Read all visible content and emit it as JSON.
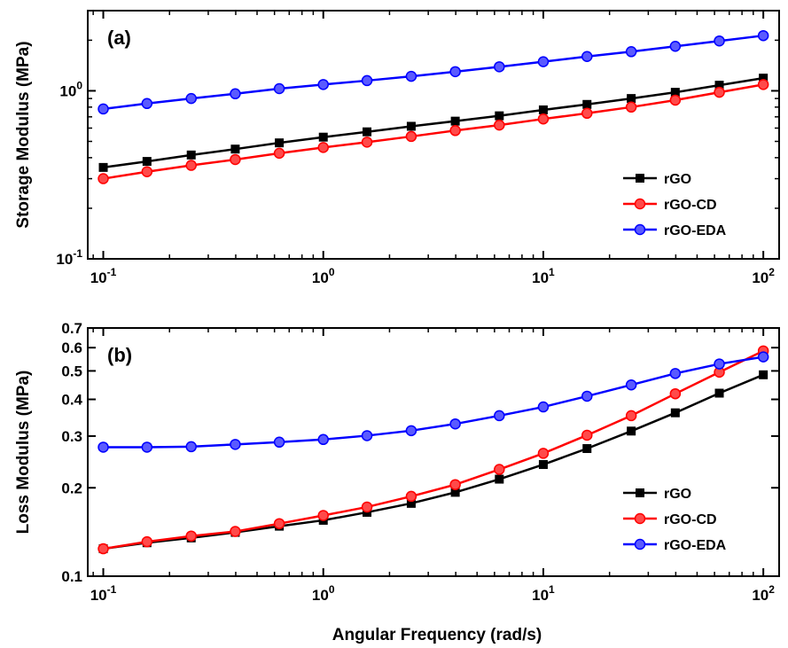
{
  "chart_data": [
    {
      "type": "line",
      "panel_label": "(a)",
      "xlabel": "",
      "ylabel": "Storage Modulus (MPa)",
      "xscale": "log",
      "yscale": "log",
      "xlim": [
        0.085,
        118
      ],
      "ylim": [
        0.1,
        3.0
      ],
      "x_ticks": [
        {
          "value": 0.1,
          "base": "10",
          "exp": "-1"
        },
        {
          "value": 1,
          "base": "10",
          "exp": "0"
        },
        {
          "value": 10,
          "base": "10",
          "exp": "1"
        },
        {
          "value": 100,
          "base": "10",
          "exp": "2"
        }
      ],
      "y_ticks": [
        {
          "value": 0.1,
          "base": "10",
          "exp": "-1"
        },
        {
          "value": 1,
          "base": "10",
          "exp": "0"
        }
      ],
      "grid": false,
      "legend_position": "bottom-right",
      "x": [
        0.1,
        0.158,
        0.251,
        0.398,
        0.631,
        1,
        1.58,
        2.51,
        3.98,
        6.31,
        10,
        15.8,
        25.1,
        39.8,
        63.1,
        100
      ],
      "series": [
        {
          "name": "rGO",
          "color": "#000000",
          "marker": "square",
          "values": [
            0.35,
            0.38,
            0.415,
            0.45,
            0.49,
            0.53,
            0.57,
            0.615,
            0.66,
            0.71,
            0.77,
            0.83,
            0.9,
            0.98,
            1.08,
            1.19
          ]
        },
        {
          "name": "rGO-CD",
          "color": "#ff0000",
          "marker": "circle",
          "values": [
            0.3,
            0.33,
            0.36,
            0.39,
            0.425,
            0.46,
            0.495,
            0.535,
            0.58,
            0.625,
            0.68,
            0.735,
            0.8,
            0.88,
            0.98,
            1.09
          ]
        },
        {
          "name": "rGO-EDA",
          "color": "#0000ff",
          "marker": "circle",
          "values": [
            0.78,
            0.84,
            0.9,
            0.96,
            1.03,
            1.09,
            1.15,
            1.22,
            1.3,
            1.39,
            1.49,
            1.6,
            1.71,
            1.84,
            1.98,
            2.13
          ]
        }
      ]
    },
    {
      "type": "line",
      "panel_label": "(b)",
      "xlabel": "Angular Frequency (rad/s)",
      "ylabel": "Loss Modulus (MPa)",
      "xscale": "log",
      "yscale": "log",
      "xlim": [
        0.085,
        118
      ],
      "ylim": [
        0.1,
        0.7
      ],
      "x_ticks": [
        {
          "value": 0.1,
          "base": "10",
          "exp": "-1"
        },
        {
          "value": 1,
          "base": "10",
          "exp": "0"
        },
        {
          "value": 10,
          "base": "10",
          "exp": "1"
        },
        {
          "value": 100,
          "base": "10",
          "exp": "2"
        }
      ],
      "y_ticks": [
        {
          "value": 0.1,
          "label": "0.1"
        },
        {
          "value": 0.2,
          "label": "0.2"
        },
        {
          "value": 0.3,
          "label": "0.3"
        },
        {
          "value": 0.4,
          "label": "0.4"
        },
        {
          "value": 0.5,
          "label": "0.5"
        },
        {
          "value": 0.6,
          "label": "0.6"
        },
        {
          "value": 0.7,
          "label": "0.7"
        }
      ],
      "grid": false,
      "legend_position": "bottom-right",
      "x": [
        0.1,
        0.158,
        0.251,
        0.398,
        0.631,
        1,
        1.58,
        2.51,
        3.98,
        6.31,
        10,
        15.8,
        25.1,
        39.8,
        63.1,
        100
      ],
      "series": [
        {
          "name": "rGO",
          "color": "#000000",
          "marker": "square",
          "values": [
            0.124,
            0.13,
            0.135,
            0.141,
            0.148,
            0.155,
            0.165,
            0.177,
            0.193,
            0.214,
            0.24,
            0.272,
            0.312,
            0.36,
            0.42,
            0.485
          ]
        },
        {
          "name": "rGO-CD",
          "color": "#ff0000",
          "marker": "circle",
          "values": [
            0.124,
            0.131,
            0.137,
            0.142,
            0.151,
            0.161,
            0.172,
            0.187,
            0.205,
            0.231,
            0.262,
            0.302,
            0.352,
            0.418,
            0.495,
            0.585
          ]
        },
        {
          "name": "rGO-EDA",
          "color": "#0000ff",
          "marker": "circle",
          "values": [
            0.275,
            0.275,
            0.276,
            0.281,
            0.286,
            0.292,
            0.301,
            0.313,
            0.33,
            0.352,
            0.377,
            0.41,
            0.448,
            0.49,
            0.528,
            0.558
          ]
        }
      ]
    }
  ]
}
